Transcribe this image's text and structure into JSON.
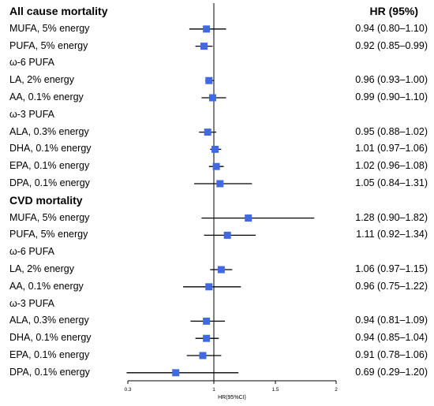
{
  "chart_data": {
    "type": "forest",
    "column_header_hr": "HR (95%)",
    "xlabel": "HR(95%CI)",
    "x_ticks": [
      "0.3",
      "1",
      "1.5",
      "2"
    ],
    "x_tick_values": [
      0.3,
      1,
      1.5,
      2
    ],
    "reference_line": 1,
    "marker_color": "#4169e1",
    "rows": [
      {
        "kind": "section",
        "label": "All cause mortality"
      },
      {
        "kind": "estimate",
        "label": "MUFA, 5% energy",
        "hr": 0.94,
        "lo": 0.8,
        "hi": 1.1,
        "text": "0.94 (0.80–1.10)"
      },
      {
        "kind": "estimate",
        "label": "PUFA, 5% energy",
        "hr": 0.92,
        "lo": 0.85,
        "hi": 0.99,
        "text": "0.92 (0.85–0.99)"
      },
      {
        "kind": "group",
        "label": "ω-6 PUFA"
      },
      {
        "kind": "estimate",
        "label": "LA, 2% energy",
        "hr": 0.96,
        "lo": 0.93,
        "hi": 1.0,
        "text": "0.96 (0.93–1.00)"
      },
      {
        "kind": "estimate",
        "label": "AA, 0.1% energy",
        "hr": 0.99,
        "lo": 0.9,
        "hi": 1.1,
        "text": "0.99 (0.90–1.10)"
      },
      {
        "kind": "group",
        "label": "ω-3 PUFA"
      },
      {
        "kind": "estimate",
        "label": "ALA, 0.3% energy",
        "hr": 0.95,
        "lo": 0.88,
        "hi": 1.02,
        "text": "0.95 (0.88–1.02)"
      },
      {
        "kind": "estimate",
        "label": "DHA, 0.1% energy",
        "hr": 1.01,
        "lo": 0.97,
        "hi": 1.06,
        "text": "1.01 (0.97–1.06)"
      },
      {
        "kind": "estimate",
        "label": "EPA, 0.1% energy",
        "hr": 1.02,
        "lo": 0.96,
        "hi": 1.08,
        "text": "1.02 (0.96–1.08)"
      },
      {
        "kind": "estimate",
        "label": "DPA, 0.1% energy",
        "hr": 1.05,
        "lo": 0.84,
        "hi": 1.31,
        "text": "1.05 (0.84–1.31)"
      },
      {
        "kind": "section",
        "label": "CVD mortality"
      },
      {
        "kind": "estimate",
        "label": "MUFA, 5% energy",
        "hr": 1.28,
        "lo": 0.9,
        "hi": 1.82,
        "text": "1.28 (0.90–1.82)"
      },
      {
        "kind": "estimate",
        "label": "PUFA, 5% energy",
        "hr": 1.11,
        "lo": 0.92,
        "hi": 1.34,
        "text": "1.11 (0.92–1.34)"
      },
      {
        "kind": "group",
        "label": "ω-6 PUFA"
      },
      {
        "kind": "estimate",
        "label": "LA, 2% energy",
        "hr": 1.06,
        "lo": 0.97,
        "hi": 1.15,
        "text": "1.06 (0.97–1.15)"
      },
      {
        "kind": "estimate",
        "label": "AA, 0.1% energy",
        "hr": 0.96,
        "lo": 0.75,
        "hi": 1.22,
        "text": "0.96 (0.75–1.22)"
      },
      {
        "kind": "group",
        "label": "ω-3 PUFA"
      },
      {
        "kind": "estimate",
        "label": "ALA, 0.3% energy",
        "hr": 0.94,
        "lo": 0.81,
        "hi": 1.09,
        "text": "0.94 (0.81–1.09)"
      },
      {
        "kind": "estimate",
        "label": "DHA, 0.1% energy",
        "hr": 0.94,
        "lo": 0.85,
        "hi": 1.04,
        "text": "0.94 (0.85–1.04)"
      },
      {
        "kind": "estimate",
        "label": "EPA, 0.1% energy",
        "hr": 0.91,
        "lo": 0.78,
        "hi": 1.06,
        "text": "0.91 (0.78–1.06)"
      },
      {
        "kind": "estimate",
        "label": "DPA, 0.1% energy",
        "hr": 0.69,
        "lo": 0.29,
        "hi": 1.2,
        "text": "0.69 (0.29–1.20)"
      }
    ]
  }
}
